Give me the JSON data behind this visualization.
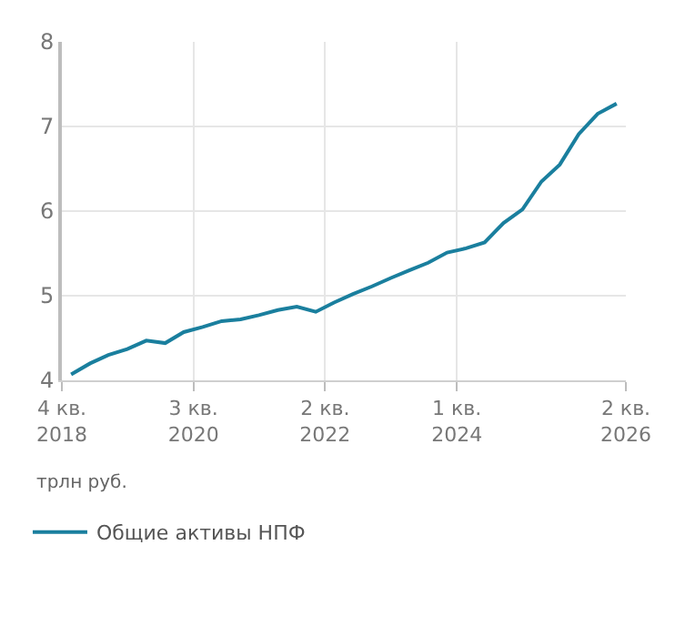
{
  "chart_data": {
    "type": "line",
    "ylabel": "трлн руб.",
    "x": [
      "2018-11-15",
      "2019-02-15",
      "2019-05-15",
      "2019-08-15",
      "2019-11-15",
      "2020-02-15",
      "2020-05-15",
      "2020-08-15",
      "2020-11-15",
      "2021-02-15",
      "2021-05-15",
      "2021-08-15",
      "2021-11-15",
      "2022-02-15",
      "2022-05-15",
      "2022-08-15",
      "2022-11-15",
      "2023-02-15",
      "2023-05-15",
      "2023-08-15",
      "2023-11-15",
      "2024-02-15",
      "2024-05-15",
      "2024-08-15",
      "2024-11-15",
      "2025-02-15",
      "2025-05-15",
      "2025-08-15",
      "2025-11-15",
      "2026-02-15"
    ],
    "series": [
      {
        "name": "Общие активы НПФ",
        "color": "#1a7f9e",
        "values": [
          4.07,
          4.2,
          4.3,
          4.37,
          4.47,
          4.44,
          4.57,
          4.63,
          4.7,
          4.72,
          4.77,
          4.83,
          4.87,
          4.81,
          4.92,
          5.02,
          5.11,
          5.21,
          5.3,
          5.39,
          5.51,
          5.56,
          5.63,
          5.86,
          6.02,
          6.35,
          6.55,
          6.91,
          7.15,
          7.27
        ]
      }
    ],
    "xlim": [
      "2018-10-01",
      "2026-04-01"
    ],
    "xticks": [
      {
        "value": "2018-10-01",
        "label": "4 кв.\n2018"
      },
      {
        "value": "2020-07-01",
        "label": "3 кв.\n2020"
      },
      {
        "value": "2022-04-01",
        "label": "2 кв.\n2022"
      },
      {
        "value": "2024-01-01",
        "label": "1 кв.\n2024"
      },
      {
        "value": "2026-04-01",
        "label": "2 кв.\n2026"
      }
    ],
    "ylim": [
      4,
      8
    ],
    "yticks": [
      4,
      5,
      6,
      7,
      8
    ],
    "grid": true,
    "legend": "bottom",
    "marker": "none",
    "line_style": "solid"
  }
}
